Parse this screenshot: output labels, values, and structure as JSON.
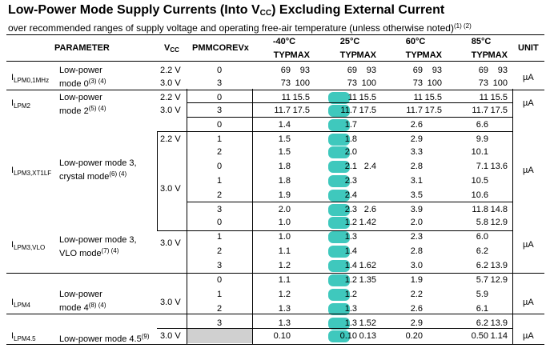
{
  "title": {
    "main": "Low-Power Mode Supply Currents (Into V",
    "sub": "CC",
    "rest": ") Excluding External Current"
  },
  "subtitle": {
    "text": "over recommended ranges of supply voltage and operating free-air temperature (unless otherwise noted)",
    "notes": "(1) (2)"
  },
  "header": {
    "parameter": "PARAMETER",
    "vcc_main": "V",
    "vcc_sub": "CC",
    "pmmcorev": "PMMCOREVx",
    "temps": [
      "-40°C",
      "25°C",
      "60°C",
      "85°C"
    ],
    "typ": "TYP",
    "max": "MAX",
    "unit": "UNIT"
  },
  "highlight_color": "#3fc8bd",
  "groups": [
    {
      "sym": "I",
      "sub": "LPM0,1MHz",
      "desc1": "Low-power",
      "desc2": "mode 0",
      "desc_note": "(3) (4)",
      "unit": "µA"
    },
    {
      "sym": "I",
      "sub": "LPM2",
      "desc1": "Low-power",
      "desc2": "mode 2",
      "desc_note": "(5) (4)",
      "unit": "µA"
    },
    {
      "sym": "I",
      "sub": "LPM3,XT1LF",
      "desc1": "Low-power mode 3,",
      "desc2": "crystal mode",
      "desc_note": "(6) (4)",
      "unit": "µA"
    },
    {
      "sym": "I",
      "sub": "LPM3,VLO",
      "desc1": "Low-power mode 3,",
      "desc2": "VLO mode",
      "desc_note": "(7) (4)",
      "unit": "µA"
    },
    {
      "sym": "I",
      "sub": "LPM4",
      "desc1": "Low-power",
      "desc2": "mode 4",
      "desc_note": "(8) (4)",
      "unit": "µA"
    },
    {
      "sym": "I",
      "sub": "LPM4.5",
      "desc1": "Low-power mode 4.5",
      "desc2": "",
      "desc_note": "(9)",
      "unit": "µA"
    }
  ],
  "vcc_labels": [
    "2.2 V",
    "3.0 V",
    "2.2 V",
    "3.0 V",
    "2.2 V",
    "3.0 V",
    "3.0 V",
    "3.0 V",
    "3.0 V"
  ],
  "rows": [
    {
      "pmm": "0",
      "v": [
        "69",
        "93",
        "69",
        "93",
        "69",
        "93",
        "69",
        "93"
      ]
    },
    {
      "pmm": "3",
      "v": [
        "73",
        "100",
        "73",
        "100",
        "73",
        "100",
        "73",
        "100"
      ]
    },
    {
      "pmm": "0",
      "v": [
        "11",
        "15.5",
        "11",
        "15.5",
        "11",
        "15.5",
        "11",
        "15.5"
      ]
    },
    {
      "pmm": "3",
      "v": [
        "11.7",
        "17.5",
        "11.7",
        "17.5",
        "11.7",
        "17.5",
        "11.7",
        "17.5"
      ]
    },
    {
      "pmm": "0",
      "v": [
        "1.4",
        "",
        "1.7",
        "",
        "2.6",
        "",
        "6.6",
        ""
      ]
    },
    {
      "pmm": "1",
      "v": [
        "1.5",
        "",
        "1.8",
        "",
        "2.9",
        "",
        "9.9",
        ""
      ]
    },
    {
      "pmm": "2",
      "v": [
        "1.5",
        "",
        "2.0",
        "",
        "3.3",
        "",
        "10.1",
        ""
      ]
    },
    {
      "pmm": "0",
      "v": [
        "1.8",
        "",
        "2.1",
        "2.4",
        "2.8",
        "",
        "7.1",
        "13.6"
      ]
    },
    {
      "pmm": "1",
      "v": [
        "1.8",
        "",
        "2.3",
        "",
        "3.1",
        "",
        "10.5",
        ""
      ]
    },
    {
      "pmm": "2",
      "v": [
        "1.9",
        "",
        "2.4",
        "",
        "3.5",
        "",
        "10.6",
        ""
      ]
    },
    {
      "pmm": "3",
      "v": [
        "2.0",
        "",
        "2.3",
        "2.6",
        "3.9",
        "",
        "11.8",
        "14.8"
      ]
    },
    {
      "pmm": "0",
      "v": [
        "1.0",
        "",
        "1.2",
        "1.42",
        "2.0",
        "",
        "5.8",
        "12.9"
      ]
    },
    {
      "pmm": "1",
      "v": [
        "1.0",
        "",
        "1.3",
        "",
        "2.3",
        "",
        "6.0",
        ""
      ]
    },
    {
      "pmm": "2",
      "v": [
        "1.1",
        "",
        "1.4",
        "",
        "2.8",
        "",
        "6.2",
        ""
      ]
    },
    {
      "pmm": "3",
      "v": [
        "1.2",
        "",
        "1.4",
        "1.62",
        "3.0",
        "",
        "6.2",
        "13.9"
      ]
    },
    {
      "pmm": "0",
      "v": [
        "1.1",
        "",
        "1.2",
        "1.35",
        "1.9",
        "",
        "5.7",
        "12.9"
      ]
    },
    {
      "pmm": "1",
      "v": [
        "1.2",
        "",
        "1.2",
        "",
        "2.2",
        "",
        "5.9",
        ""
      ]
    },
    {
      "pmm": "2",
      "v": [
        "1.3",
        "",
        "1.3",
        "",
        "2.6",
        "",
        "6.1",
        ""
      ]
    },
    {
      "pmm": "3",
      "v": [
        "1.3",
        "",
        "1.3",
        "1.52",
        "2.9",
        "",
        "6.2",
        "13.9"
      ]
    },
    {
      "pmm": "",
      "v": [
        "0.10",
        "",
        "0.10",
        "0.13",
        "0.20",
        "",
        "0.50",
        "1.14"
      ]
    }
  ]
}
